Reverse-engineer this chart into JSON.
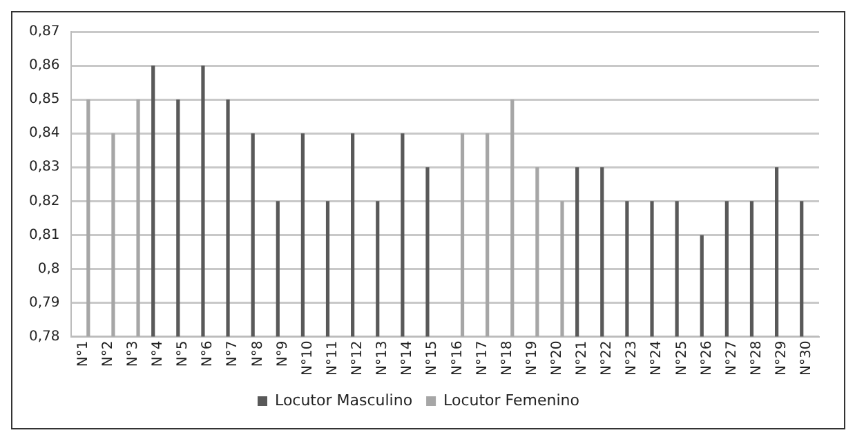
{
  "chart_data": {
    "type": "bar",
    "categories": [
      "N°1",
      "N°2",
      "N°3",
      "N°4",
      "N°5",
      "N°6",
      "N°7",
      "N°8",
      "N°9",
      "N°10",
      "N°11",
      "N°12",
      "N°13",
      "N°14",
      "N°15",
      "N°16",
      "N°17",
      "N°18",
      "N°19",
      "N°20",
      "N°21",
      "N°22",
      "N°23",
      "N°24",
      "N°25",
      "N°26",
      "N°27",
      "N°28",
      "N°29",
      "N°30"
    ],
    "series": [
      {
        "name": "Locutor Masculino",
        "color": "#595959",
        "values": [
          null,
          null,
          null,
          0.86,
          0.85,
          0.86,
          0.85,
          0.84,
          0.82,
          0.84,
          0.82,
          0.84,
          0.82,
          0.84,
          0.83,
          null,
          null,
          null,
          null,
          null,
          0.83,
          0.83,
          0.82,
          0.82,
          0.82,
          0.81,
          0.82,
          0.82,
          0.83,
          0.82
        ]
      },
      {
        "name": "Locutor Femenino",
        "color": "#a6a6a6",
        "values": [
          0.85,
          0.84,
          0.85,
          null,
          null,
          null,
          null,
          null,
          null,
          null,
          null,
          null,
          null,
          null,
          null,
          0.84,
          0.84,
          0.85,
          0.83,
          0.82,
          null,
          null,
          null,
          null,
          null,
          null,
          null,
          null,
          null,
          null
        ]
      }
    ],
    "ylim": [
      0.78,
      0.87
    ],
    "yticks": [
      {
        "value": 0.78,
        "label": "0,78"
      },
      {
        "value": 0.79,
        "label": "0,79"
      },
      {
        "value": 0.8,
        "label": "0,8"
      },
      {
        "value": 0.81,
        "label": "0,81"
      },
      {
        "value": 0.82,
        "label": "0,82"
      },
      {
        "value": 0.83,
        "label": "0,83"
      },
      {
        "value": 0.84,
        "label": "0,84"
      },
      {
        "value": 0.85,
        "label": "0,85"
      },
      {
        "value": 0.86,
        "label": "0,86"
      },
      {
        "value": 0.87,
        "label": "0,87"
      }
    ],
    "grid": "y",
    "legend": "bottom"
  }
}
